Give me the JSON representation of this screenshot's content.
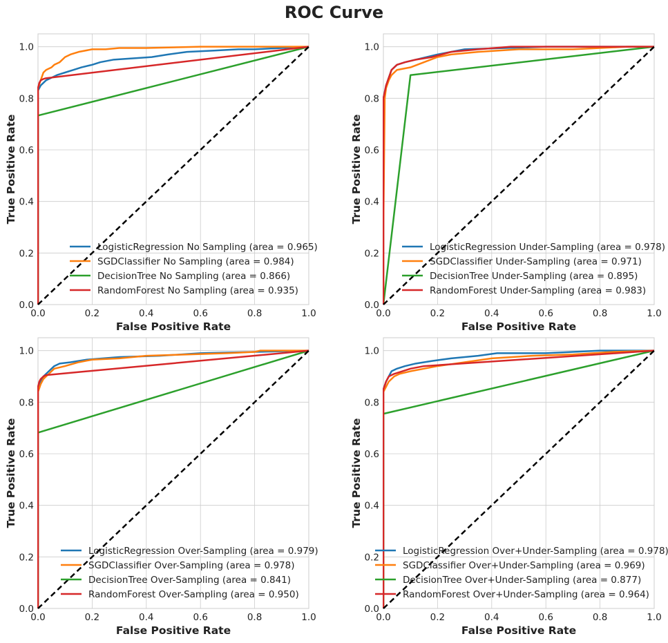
{
  "figure": {
    "title": "ROC Curve"
  },
  "colors": {
    "LogisticRegression": "#1f77b4",
    "SGDClassifier": "#ff7f0e",
    "DecisionTree": "#2ca02c",
    "RandomForest": "#d62728",
    "chance": "#000000",
    "grid": "#cccccc",
    "frame": "#cccccc"
  },
  "chart_data": [
    {
      "type": "line",
      "xlabel": "False Positive Rate",
      "ylabel": "True Positive Rate",
      "xlim": [
        0,
        1
      ],
      "ylim": [
        0,
        1.05
      ],
      "xticks": [
        "0.0",
        "0.2",
        "0.4",
        "0.6",
        "0.8",
        "1.0"
      ],
      "yticks": [
        "0.0",
        "0.2",
        "0.4",
        "0.6",
        "0.8",
        "1.0"
      ],
      "grid": true,
      "legend": "lower-right",
      "series": [
        {
          "name": "LogisticRegression No Sampling (area = 0.965)",
          "color_key": "LogisticRegression",
          "x": [
            0,
            0,
            0.005,
            0.01,
            0.02,
            0.03,
            0.05,
            0.07,
            0.1,
            0.13,
            0.16,
            0.2,
            0.23,
            0.28,
            0.35,
            0.42,
            0.48,
            0.55,
            0.65,
            0.74,
            0.8,
            0.9,
            1.0
          ],
          "y": [
            0,
            0.83,
            0.84,
            0.85,
            0.86,
            0.87,
            0.88,
            0.89,
            0.9,
            0.91,
            0.92,
            0.93,
            0.94,
            0.95,
            0.955,
            0.96,
            0.97,
            0.98,
            0.985,
            0.99,
            0.99,
            0.995,
            1.0
          ]
        },
        {
          "name": "SGDClassifier No Sampling (area = 0.984)",
          "color_key": "SGDClassifier",
          "x": [
            0,
            0,
            0.01,
            0.02,
            0.03,
            0.05,
            0.06,
            0.08,
            0.1,
            0.12,
            0.15,
            0.2,
            0.25,
            0.3,
            0.4,
            0.6,
            0.8,
            1.0
          ],
          "y": [
            0,
            0.84,
            0.87,
            0.9,
            0.91,
            0.92,
            0.93,
            0.94,
            0.96,
            0.97,
            0.98,
            0.99,
            0.99,
            0.995,
            0.995,
            1.0,
            1.0,
            1.0
          ]
        },
        {
          "name": "DecisionTree No Sampling (area = 0.866)",
          "color_key": "DecisionTree",
          "x": [
            0,
            0,
            1.0
          ],
          "y": [
            0,
            0.733,
            1.0
          ]
        },
        {
          "name": "RandomForest No Sampling (area = 0.935)",
          "color_key": "RandomForest",
          "x": [
            0,
            0,
            0.005,
            0.01,
            0.02,
            0.03,
            1.0
          ],
          "y": [
            0,
            0.84,
            0.86,
            0.87,
            0.875,
            0.878,
            1.0
          ]
        }
      ]
    },
    {
      "type": "line",
      "xlabel": "False Positive Rate",
      "ylabel": "True Positive Rate",
      "xlim": [
        0,
        1
      ],
      "ylim": [
        0,
        1.05
      ],
      "xticks": [
        "0.0",
        "0.2",
        "0.4",
        "0.6",
        "0.8",
        "1.0"
      ],
      "yticks": [
        "0.0",
        "0.2",
        "0.4",
        "0.6",
        "0.8",
        "1.0"
      ],
      "grid": true,
      "legend": "lower-right",
      "series": [
        {
          "name": "LogisticRegression Under-Sampling (area = 0.978)",
          "color_key": "LogisticRegression",
          "x": [
            0,
            0,
            0.01,
            0.02,
            0.03,
            0.05,
            0.08,
            0.12,
            0.2,
            0.3,
            0.45,
            0.6,
            1.0
          ],
          "y": [
            0,
            0.8,
            0.85,
            0.88,
            0.91,
            0.93,
            0.94,
            0.95,
            0.97,
            0.99,
            0.995,
            1.0,
            1.0
          ]
        },
        {
          "name": "SGDClassifier Under-Sampling (area = 0.971)",
          "color_key": "SGDClassifier",
          "x": [
            0,
            0,
            0.005,
            0.01,
            0.02,
            0.03,
            0.05,
            0.1,
            0.15,
            0.2,
            0.25,
            0.35,
            0.5,
            0.7,
            0.9,
            1.0
          ],
          "y": [
            0,
            0.3,
            0.8,
            0.84,
            0.87,
            0.89,
            0.91,
            0.92,
            0.94,
            0.96,
            0.97,
            0.98,
            0.99,
            0.99,
            1.0,
            1.0
          ]
        },
        {
          "name": "DecisionTree Under-Sampling (area = 0.895)",
          "color_key": "DecisionTree",
          "x": [
            0,
            0.1,
            1.0
          ],
          "y": [
            0,
            0.89,
            1.0
          ]
        },
        {
          "name": "RandomForest Under-Sampling (area = 0.983)",
          "color_key": "RandomForest",
          "x": [
            0,
            0,
            0.01,
            0.02,
            0.03,
            0.05,
            0.08,
            0.12,
            0.18,
            0.25,
            0.35,
            0.47,
            0.7,
            1.0
          ],
          "y": [
            0,
            0.8,
            0.85,
            0.88,
            0.91,
            0.93,
            0.94,
            0.95,
            0.96,
            0.98,
            0.99,
            1.0,
            1.0,
            1.0
          ]
        }
      ]
    },
    {
      "type": "line",
      "xlabel": "False Positive Rate",
      "ylabel": "True Positive Rate",
      "xlim": [
        0,
        1
      ],
      "ylim": [
        0,
        1.05
      ],
      "xticks": [
        "0.0",
        "0.2",
        "0.4",
        "0.6",
        "0.8",
        "1.0"
      ],
      "yticks": [
        "0.0",
        "0.2",
        "0.4",
        "0.6",
        "0.8",
        "1.0"
      ],
      "grid": true,
      "legend": "lower-right",
      "series": [
        {
          "name": "LogisticRegression Over-Sampling (area = 0.979)",
          "color_key": "LogisticRegression",
          "x": [
            0,
            0,
            0.01,
            0.02,
            0.04,
            0.06,
            0.08,
            0.12,
            0.18,
            0.3,
            0.45,
            0.6,
            0.8,
            1.0
          ],
          "y": [
            0,
            0.85,
            0.88,
            0.9,
            0.92,
            0.94,
            0.95,
            0.955,
            0.965,
            0.975,
            0.98,
            0.99,
            0.995,
            1.0
          ]
        },
        {
          "name": "SGDClassifier Over-Sampling (area = 0.978)",
          "color_key": "SGDClassifier",
          "x": [
            0,
            0,
            0.01,
            0.02,
            0.04,
            0.06,
            0.1,
            0.15,
            0.2,
            0.3,
            0.4,
            0.55,
            0.7,
            0.8,
            0.82,
            1.0
          ],
          "y": [
            0,
            0.84,
            0.87,
            0.89,
            0.91,
            0.93,
            0.94,
            0.955,
            0.965,
            0.97,
            0.98,
            0.985,
            0.99,
            0.995,
            1.0,
            1.0
          ]
        },
        {
          "name": "DecisionTree Over-Sampling (area = 0.841)",
          "color_key": "DecisionTree",
          "x": [
            0,
            0,
            1.0
          ],
          "y": [
            0,
            0.682,
            1.0
          ]
        },
        {
          "name": "RandomForest Over-Sampling (area = 0.950)",
          "color_key": "RandomForest",
          "x": [
            0,
            0,
            0.005,
            0.01,
            0.02,
            0.03,
            1.0
          ],
          "y": [
            0,
            0.86,
            0.88,
            0.89,
            0.9,
            0.905,
            1.0
          ]
        }
      ]
    },
    {
      "type": "line",
      "xlabel": "False Positive Rate",
      "ylabel": "True Positive Rate",
      "xlim": [
        0,
        1
      ],
      "ylim": [
        0,
        1.05
      ],
      "xticks": [
        "0.0",
        "0.2",
        "0.4",
        "0.6",
        "0.8",
        "1.0"
      ],
      "yticks": [
        "0.0",
        "0.2",
        "0.4",
        "0.6",
        "0.8",
        "1.0"
      ],
      "grid": true,
      "legend": "lower-right",
      "series": [
        {
          "name": "LogisticRegression Over+Under-Sampling (area = 0.978)",
          "color_key": "LogisticRegression",
          "x": [
            0,
            0,
            0.01,
            0.02,
            0.03,
            0.05,
            0.08,
            0.12,
            0.18,
            0.25,
            0.35,
            0.42,
            0.6,
            0.8,
            1.0
          ],
          "y": [
            0,
            0.85,
            0.88,
            0.9,
            0.92,
            0.93,
            0.94,
            0.95,
            0.96,
            0.97,
            0.98,
            0.99,
            0.99,
            1.0,
            1.0
          ]
        },
        {
          "name": "SGDClassifier Over+Under-Sampling (area = 0.969)",
          "color_key": "SGDClassifier",
          "x": [
            0,
            0,
            0.01,
            0.02,
            0.04,
            0.06,
            0.1,
            0.15,
            0.2,
            0.3,
            0.4,
            0.55,
            0.7,
            0.85,
            1.0
          ],
          "y": [
            0,
            0.84,
            0.86,
            0.88,
            0.9,
            0.91,
            0.92,
            0.93,
            0.94,
            0.955,
            0.97,
            0.98,
            0.985,
            0.995,
            1.0
          ]
        },
        {
          "name": "DecisionTree Over+Under-Sampling (area = 0.877)",
          "color_key": "DecisionTree",
          "x": [
            0,
            0,
            1.0
          ],
          "y": [
            0,
            0.755,
            1.0
          ]
        },
        {
          "name": "RandomForest Over+Under-Sampling (area = 0.964)",
          "color_key": "RandomForest",
          "x": [
            0,
            0,
            0.01,
            0.02,
            0.04,
            0.07,
            0.1,
            0.15,
            1.0
          ],
          "y": [
            0,
            0.85,
            0.88,
            0.9,
            0.91,
            0.92,
            0.93,
            0.94,
            1.0
          ]
        }
      ]
    }
  ]
}
